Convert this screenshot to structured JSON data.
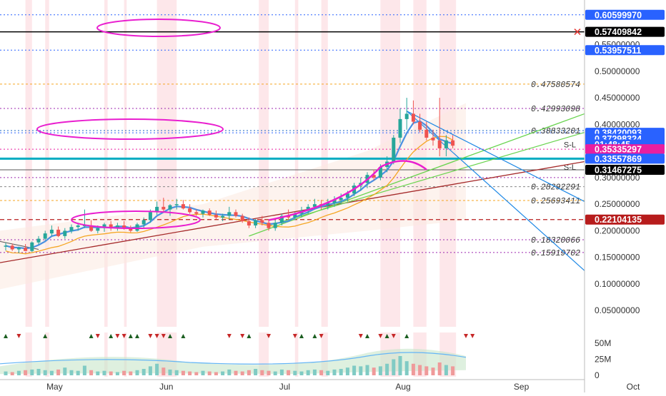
{
  "chart_data": {
    "type": "candlestick",
    "price_scale": {
      "ylim": [
        0.0,
        0.62
      ],
      "ticks": [
        {
          "value": 0.05,
          "label": "0.05000000"
        },
        {
          "value": 0.1,
          "label": "0.10000000"
        },
        {
          "value": 0.15,
          "label": "0.15000000"
        },
        {
          "value": 0.2,
          "label": "0.20000000"
        },
        {
          "value": 0.25,
          "label": "0.25000000"
        },
        {
          "value": 0.3,
          "label": "0.30000000"
        },
        {
          "value": 0.35,
          "label": "0.35000000"
        },
        {
          "value": 0.4,
          "label": "0.40000000"
        },
        {
          "value": 0.45,
          "label": "0.45000000"
        },
        {
          "value": 0.5,
          "label": "0.50000000"
        },
        {
          "value": 0.55,
          "label": "0.55000000"
        }
      ]
    },
    "time_axis": {
      "ticks": [
        {
          "label": "May",
          "slot": 7
        },
        {
          "label": "Jun",
          "slot": 24
        },
        {
          "label": "Jul",
          "slot": 42
        },
        {
          "label": "Aug",
          "slot": 60
        },
        {
          "label": "Sep",
          "slot": 78
        },
        {
          "label": "Oct",
          "slot": 95
        }
      ]
    },
    "price_badges": [
      {
        "value": 0.6059997,
        "label": "0.60599970",
        "color": "#2962ff"
      },
      {
        "value": 0.57409842,
        "label": "0.57409842",
        "color": "#000000"
      },
      {
        "value": 0.53957511,
        "label": "0.53957511",
        "color": "#2962ff"
      },
      {
        "value": 0.38420093,
        "label": "0.38420093",
        "color": "#2962ff"
      },
      {
        "value": 0.37298324,
        "label": "0.37298324",
        "color": "#2962ff"
      },
      {
        "value": 0.36228,
        "label": "01:48:45",
        "color": "#2962ff"
      },
      {
        "value": 0.35335297,
        "label": "0.35335297",
        "color": "#e91ea0"
      },
      {
        "value": 0.33557869,
        "label": "0.33557869",
        "color": "#2962ff"
      },
      {
        "value": 0.31467275,
        "label": "0.31467275",
        "color": "#000000"
      },
      {
        "value": 0.22104135,
        "label": "0.22104135",
        "color": "#b71c1c"
      }
    ],
    "level_labels": [
      {
        "value": 0.47580574,
        "label": "0.47580574"
      },
      {
        "value": 0.42993098,
        "label": "0.42993098"
      },
      {
        "value": 0.38833201,
        "label": "0.38833201"
      },
      {
        "value": 0.28292291,
        "label": "0.28292291"
      },
      {
        "value": 0.25693411,
        "label": "0.25693411"
      },
      {
        "value": 0.18320066,
        "label": "0.18320066"
      },
      {
        "value": 0.15919702,
        "label": "0.15919702"
      }
    ],
    "sl_labels": [
      "S-L",
      "S-L"
    ],
    "volume_scale": {
      "ticks": [
        {
          "value": 0,
          "label": "0"
        },
        {
          "value": 25,
          "label": "25M"
        },
        {
          "value": 50,
          "label": "50M"
        }
      ]
    },
    "candles": [
      [
        0.17,
        0.178,
        0.163,
        0.172
      ],
      [
        0.172,
        0.176,
        0.162,
        0.165
      ],
      [
        0.165,
        0.17,
        0.158,
        0.168
      ],
      [
        0.168,
        0.175,
        0.162,
        0.162
      ],
      [
        0.162,
        0.18,
        0.16,
        0.178
      ],
      [
        0.178,
        0.19,
        0.174,
        0.185
      ],
      [
        0.185,
        0.2,
        0.182,
        0.195
      ],
      [
        0.195,
        0.21,
        0.19,
        0.202
      ],
      [
        0.202,
        0.208,
        0.188,
        0.19
      ],
      [
        0.19,
        0.205,
        0.185,
        0.2
      ],
      [
        0.2,
        0.212,
        0.195,
        0.207
      ],
      [
        0.207,
        0.215,
        0.2,
        0.21
      ],
      [
        0.21,
        0.24,
        0.205,
        0.21
      ],
      [
        0.21,
        0.22,
        0.198,
        0.2
      ],
      [
        0.2,
        0.21,
        0.195,
        0.205
      ],
      [
        0.205,
        0.215,
        0.198,
        0.212
      ],
      [
        0.212,
        0.218,
        0.2,
        0.205
      ],
      [
        0.205,
        0.215,
        0.2,
        0.21
      ],
      [
        0.21,
        0.218,
        0.202,
        0.206
      ],
      [
        0.206,
        0.21,
        0.197,
        0.2
      ],
      [
        0.2,
        0.215,
        0.198,
        0.212
      ],
      [
        0.212,
        0.225,
        0.205,
        0.22
      ],
      [
        0.22,
        0.24,
        0.215,
        0.235
      ],
      [
        0.235,
        0.255,
        0.23,
        0.245
      ],
      [
        0.245,
        0.262,
        0.235,
        0.24
      ],
      [
        0.24,
        0.25,
        0.228,
        0.248
      ],
      [
        0.248,
        0.26,
        0.24,
        0.25
      ],
      [
        0.25,
        0.258,
        0.24,
        0.242
      ],
      [
        0.242,
        0.25,
        0.232,
        0.235
      ],
      [
        0.235,
        0.24,
        0.228,
        0.232
      ],
      [
        0.232,
        0.24,
        0.225,
        0.238
      ],
      [
        0.238,
        0.242,
        0.228,
        0.23
      ],
      [
        0.23,
        0.238,
        0.222,
        0.225
      ],
      [
        0.225,
        0.232,
        0.218,
        0.228
      ],
      [
        0.228,
        0.245,
        0.222,
        0.235
      ],
      [
        0.235,
        0.24,
        0.225,
        0.228
      ],
      [
        0.228,
        0.232,
        0.215,
        0.218
      ],
      [
        0.218,
        0.225,
        0.205,
        0.21
      ],
      [
        0.21,
        0.222,
        0.205,
        0.22
      ],
      [
        0.22,
        0.228,
        0.21,
        0.215
      ],
      [
        0.215,
        0.222,
        0.2,
        0.205
      ],
      [
        0.205,
        0.22,
        0.2,
        0.215
      ],
      [
        0.215,
        0.232,
        0.21,
        0.228
      ],
      [
        0.228,
        0.24,
        0.22,
        0.225
      ],
      [
        0.225,
        0.235,
        0.22,
        0.232
      ],
      [
        0.232,
        0.245,
        0.225,
        0.238
      ],
      [
        0.238,
        0.25,
        0.232,
        0.245
      ],
      [
        0.245,
        0.26,
        0.24,
        0.25
      ],
      [
        0.25,
        0.258,
        0.24,
        0.248
      ],
      [
        0.248,
        0.26,
        0.24,
        0.252
      ],
      [
        0.252,
        0.265,
        0.245,
        0.258
      ],
      [
        0.258,
        0.27,
        0.25,
        0.262
      ],
      [
        0.262,
        0.275,
        0.255,
        0.27
      ],
      [
        0.27,
        0.29,
        0.265,
        0.285
      ],
      [
        0.285,
        0.3,
        0.275,
        0.29
      ],
      [
        0.29,
        0.31,
        0.28,
        0.305
      ],
      [
        0.305,
        0.315,
        0.295,
        0.3
      ],
      [
        0.3,
        0.325,
        0.295,
        0.32
      ],
      [
        0.32,
        0.34,
        0.31,
        0.33
      ],
      [
        0.33,
        0.38,
        0.325,
        0.375
      ],
      [
        0.375,
        0.43,
        0.365,
        0.41
      ],
      [
        0.41,
        0.45,
        0.39,
        0.42
      ],
      [
        0.42,
        0.445,
        0.4,
        0.405
      ],
      [
        0.405,
        0.42,
        0.385,
        0.39
      ],
      [
        0.39,
        0.405,
        0.37,
        0.375
      ],
      [
        0.375,
        0.39,
        0.36,
        0.37
      ],
      [
        0.37,
        0.45,
        0.34,
        0.355
      ],
      [
        0.355,
        0.38,
        0.34,
        0.37
      ],
      [
        0.37,
        0.38,
        0.355,
        0.36
      ]
    ],
    "volumes": [
      6,
      5,
      7,
      8,
      9,
      10,
      8,
      7,
      9,
      12,
      8,
      7,
      15,
      8,
      6,
      7,
      6,
      5,
      7,
      6,
      8,
      10,
      14,
      18,
      12,
      9,
      8,
      7,
      6,
      5,
      7,
      6,
      5,
      6,
      9,
      7,
      6,
      8,
      10,
      8,
      7,
      6,
      9,
      8,
      7,
      6,
      8,
      9,
      8,
      7,
      9,
      10,
      12,
      15,
      14,
      16,
      12,
      14,
      18,
      25,
      30,
      22,
      18,
      16,
      14,
      12,
      20,
      16,
      14
    ],
    "signals": {
      "up_slots": [
        0,
        6,
        13,
        16,
        19,
        20,
        25,
        27,
        37,
        45,
        47,
        55,
        58,
        61
      ],
      "down_slots": [
        2,
        14,
        17,
        18,
        22,
        23,
        24,
        34,
        36,
        40,
        44,
        48,
        54,
        57,
        59,
        70,
        71
      ]
    }
  }
}
